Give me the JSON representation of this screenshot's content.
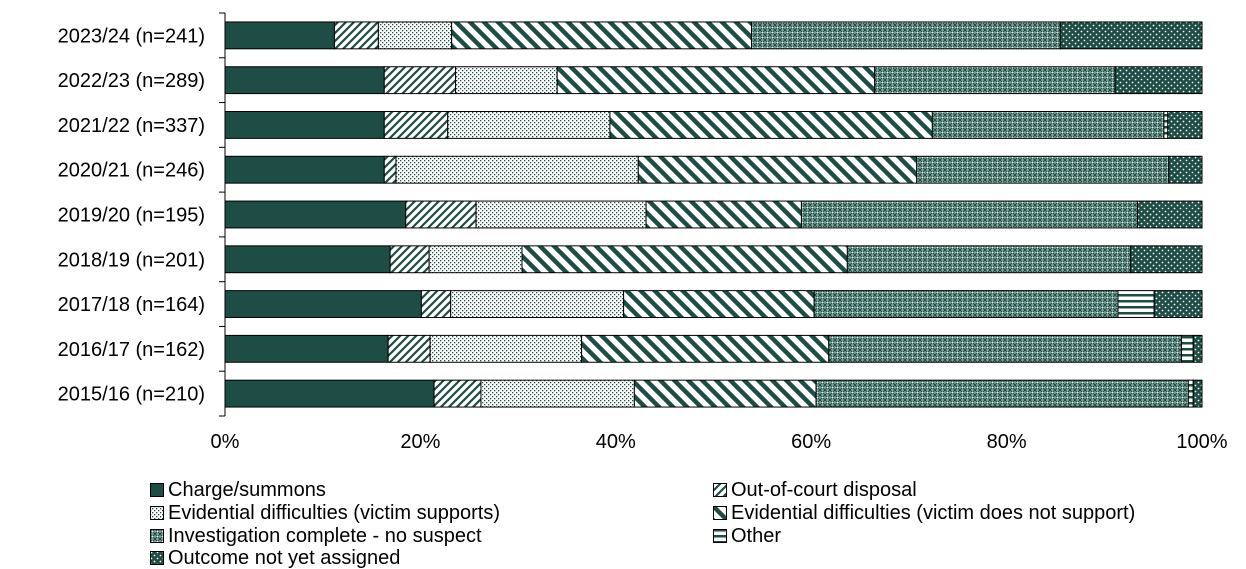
{
  "chart_data": {
    "type": "bar",
    "orientation": "horizontal",
    "stacked": true,
    "percent": true,
    "categories": [
      "2023/24 (n=241)",
      "2022/23 (n=289)",
      "2021/22 (n=337)",
      "2020/21 (n=246)",
      "2019/20 (n=195)",
      "2018/19 (n=201)",
      "2017/18 (n=164)",
      "2016/17 (n=162)",
      "2015/16 (n=210)"
    ],
    "series": [
      {
        "name": "Charge/summons",
        "pattern": "solid",
        "color": "#1d4d45",
        "values": [
          11.2,
          16.3,
          16.3,
          16.3,
          18.5,
          16.9,
          20.1,
          16.7,
          21.4
        ]
      },
      {
        "name": "Out-of-court disposal",
        "pattern": "diagonal",
        "color": "#1d4d45",
        "values": [
          4.5,
          7.3,
          6.5,
          1.2,
          7.2,
          4.0,
          3.0,
          4.3,
          4.8
        ]
      },
      {
        "name": "Evidential difficulties (victim supports)",
        "pattern": "dots",
        "color": "#1d4d45",
        "values": [
          7.5,
          10.4,
          16.6,
          24.8,
          17.4,
          9.5,
          17.7,
          15.5,
          15.7
        ]
      },
      {
        "name": "Evidential difficulties (victim does not support)",
        "pattern": "wide-diagonal",
        "color": "#1d4d45",
        "values": [
          30.7,
          32.5,
          33.0,
          28.5,
          15.9,
          33.3,
          19.5,
          25.3,
          18.6
        ]
      },
      {
        "name": "Investigation complete - no suspect",
        "pattern": "crosshatch",
        "color": "#1d4d45",
        "values": [
          31.6,
          24.6,
          23.7,
          25.8,
          34.4,
          29.0,
          31.1,
          36.1,
          38.1
        ]
      },
      {
        "name": "Other",
        "pattern": "horizontal",
        "color": "#1d4d45",
        "values": [
          0.0,
          0.0,
          0.4,
          0.0,
          0.0,
          0.0,
          3.7,
          1.2,
          0.5
        ]
      },
      {
        "name": "Outcome not yet assigned",
        "pattern": "dark-dots",
        "color": "#1d4d45",
        "values": [
          14.5,
          8.9,
          3.5,
          3.4,
          6.6,
          7.3,
          4.9,
          0.9,
          0.9
        ]
      }
    ],
    "x_ticks": [
      "0%",
      "20%",
      "40%",
      "60%",
      "80%",
      "100%"
    ],
    "xlim": [
      0,
      100
    ],
    "grid": false,
    "legend_position": "bottom",
    "title": "",
    "xlabel": "",
    "ylabel": ""
  }
}
